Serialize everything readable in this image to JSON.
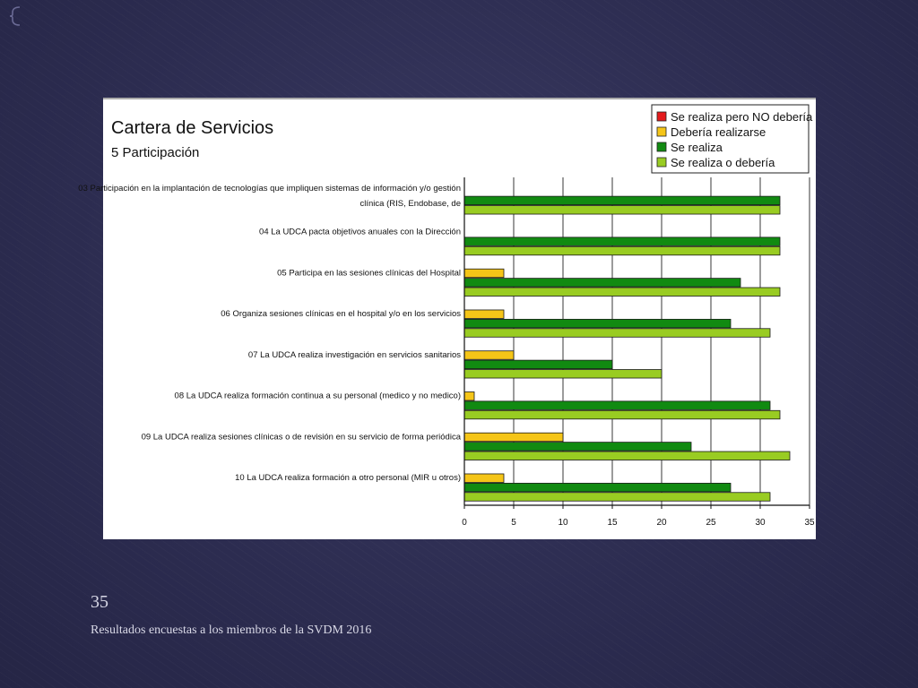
{
  "slide": {
    "number": "35",
    "footer": "Resultados encuestas a los miembros de la SVDM 2016"
  },
  "chart_data": {
    "type": "bar",
    "orientation": "horizontal",
    "title": "Cartera de Servicios",
    "subtitle": "5 Participación",
    "categories": [
      [
        "03 Participación en la implantación de tecnologías que impliquen sistemas de información y/o gestión",
        "clínica (RIS, Endobase, de"
      ],
      [
        "04 La UDCA pacta objetivos anuales con la Dirección"
      ],
      [
        "05 Participa en las sesiones clínicas del Hospital"
      ],
      [
        "06 Organiza sesiones clínicas en el hospital y/o en los servicios"
      ],
      [
        "07 La UDCA realiza investigación en servicios sanitarios"
      ],
      [
        "08 La UDCA realiza formación continua a su personal (medico y no medico)"
      ],
      [
        "09 La UDCA realiza sesiones clínicas o de revisión en su servicio de forma periódica"
      ],
      [
        "10 La UDCA realiza formación a otro personal (MIR u otros)"
      ]
    ],
    "series": [
      {
        "name": "Se realiza pero NO debería",
        "color": "#e41a1c",
        "values": [
          0,
          0,
          0,
          0,
          0,
          0,
          0,
          0
        ]
      },
      {
        "name": "Debería realizarse",
        "color": "#f5c518",
        "values": [
          0,
          0,
          4,
          4,
          5,
          1,
          10,
          4
        ]
      },
      {
        "name": "Se realiza",
        "color": "#118a11",
        "values": [
          32,
          32,
          28,
          27,
          15,
          31,
          23,
          27
        ]
      },
      {
        "name": "Se realiza o debería",
        "color": "#99cc22",
        "values": [
          32,
          32,
          32,
          31,
          20,
          32,
          33,
          31
        ]
      }
    ],
    "xlim": [
      0,
      35
    ],
    "xticks": [
      0,
      5,
      10,
      15,
      20,
      25,
      30,
      35
    ],
    "grid": true,
    "legend_position": "top-right"
  }
}
